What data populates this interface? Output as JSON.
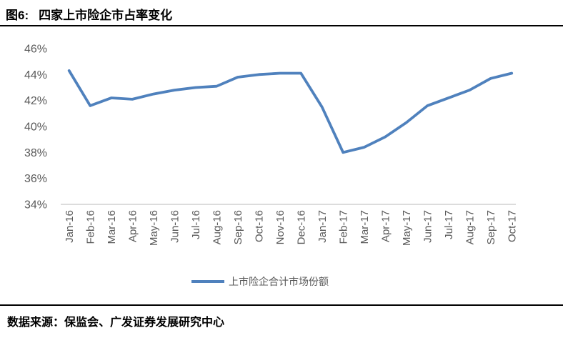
{
  "header": {
    "figure_label": "图6:",
    "title": "四家上市险企市占率变化"
  },
  "chart_data": {
    "type": "line",
    "title": "四家上市险企市占率变化",
    "categories": [
      "Jan-16",
      "Feb-16",
      "Mar-16",
      "Apr-16",
      "May-16",
      "Jun-16",
      "Jul-16",
      "Aug-16",
      "Sep-16",
      "Oct-16",
      "Nov-16",
      "Dec-16",
      "Jan-17",
      "Feb-17",
      "Mar-17",
      "Apr-17",
      "May-17",
      "Jun-17",
      "Jul-17",
      "Aug-17",
      "Sep-17",
      "Oct-17"
    ],
    "series": [
      {
        "name": "上市险企合计市场份额",
        "color": "#4F81BD",
        "values": [
          44.3,
          41.6,
          42.2,
          42.1,
          42.5,
          42.8,
          43.0,
          43.1,
          43.8,
          44.0,
          44.1,
          44.1,
          41.5,
          38.0,
          38.4,
          39.2,
          40.3,
          41.6,
          42.2,
          42.8,
          43.7,
          44.1
        ]
      }
    ],
    "ylim": [
      34,
      46
    ],
    "ytick_step": 2,
    "ytick_suffix": "%",
    "grid": false,
    "legend_position": "bottom",
    "axis_color": "#c6c6c6",
    "label_color": "#595959"
  },
  "footer": {
    "source": "数据来源：保监会、广发证券发展研究中心"
  }
}
